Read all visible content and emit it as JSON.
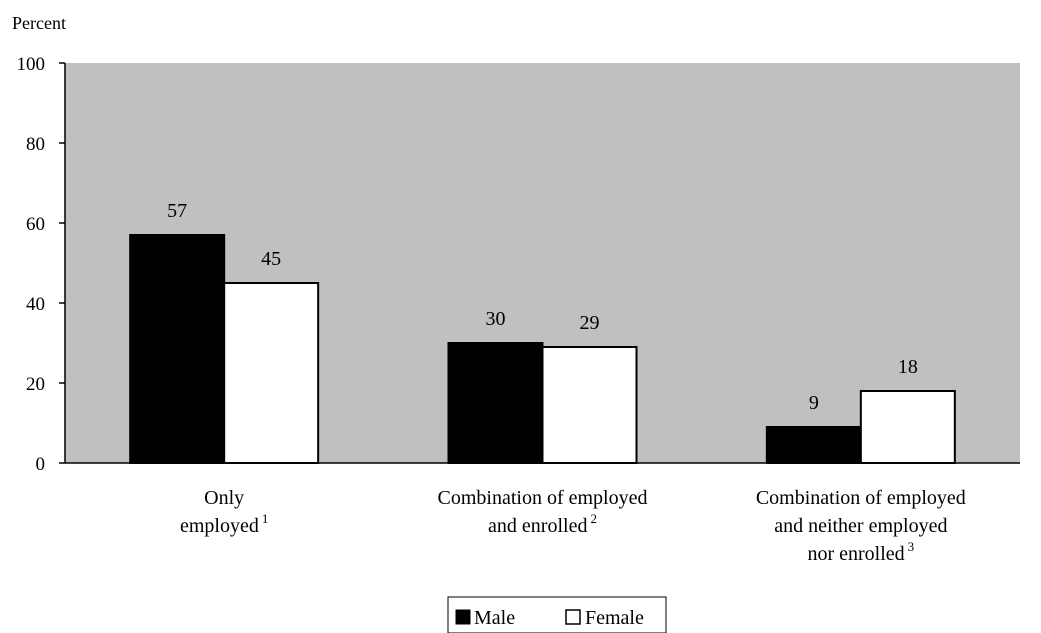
{
  "chart_data": {
    "type": "bar",
    "ylabel": "Percent",
    "ylim": [
      0,
      100
    ],
    "yticks": [
      0,
      20,
      40,
      60,
      80,
      100
    ],
    "categories": [
      {
        "lines": [
          "Only",
          "employed"
        ],
        "note": "1"
      },
      {
        "lines": [
          "Combination of employed",
          "and enrolled"
        ],
        "note": "2"
      },
      {
        "lines": [
          "Combination of employed",
          "and neither employed",
          "nor enrolled"
        ],
        "note": "3"
      }
    ],
    "series": [
      {
        "name": "Male",
        "color": "#000000",
        "values": [
          57,
          30,
          9
        ]
      },
      {
        "name": "Female",
        "color": "#ffffff",
        "values": [
          45,
          29,
          18
        ]
      }
    ],
    "grid": false,
    "plot_background": "#c0c0c0",
    "legend_position": "bottom-center"
  }
}
